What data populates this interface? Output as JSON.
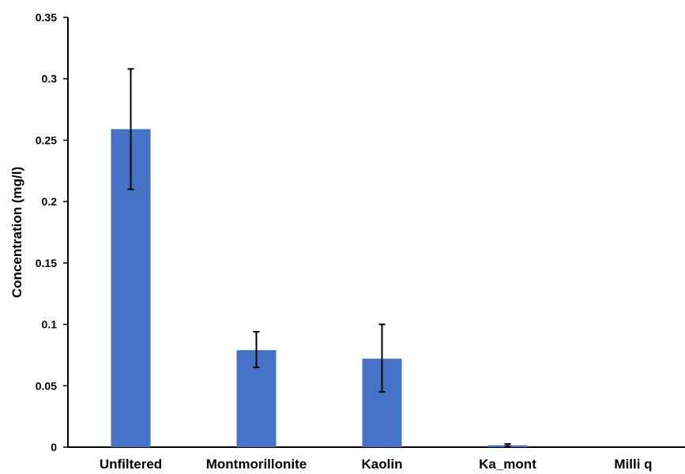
{
  "chart_data": {
    "type": "bar",
    "title": "",
    "xlabel": "",
    "ylabel": "Concentration (mg/l)",
    "ylim": [
      0,
      0.35
    ],
    "yticks": [
      "0",
      "0.05",
      "0.1",
      "0.15",
      "0.2",
      "0.25",
      "0.3",
      "0.35"
    ],
    "ytick_values": [
      0,
      0.05,
      0.1,
      0.15,
      0.2,
      0.25,
      0.3,
      0.35
    ],
    "categories": [
      "Unfiltered",
      "Montmorillonite",
      "Kaolin",
      "Ka_mont",
      "Milli q"
    ],
    "values": [
      0.259,
      0.079,
      0.072,
      0.0015,
      0
    ],
    "error_low": [
      0.21,
      0.065,
      0.045,
      0.0005,
      0
    ],
    "error_high": [
      0.308,
      0.094,
      0.1,
      0.0025,
      0
    ],
    "bar_color": "#4472C4",
    "grid": false,
    "legend": "none"
  }
}
